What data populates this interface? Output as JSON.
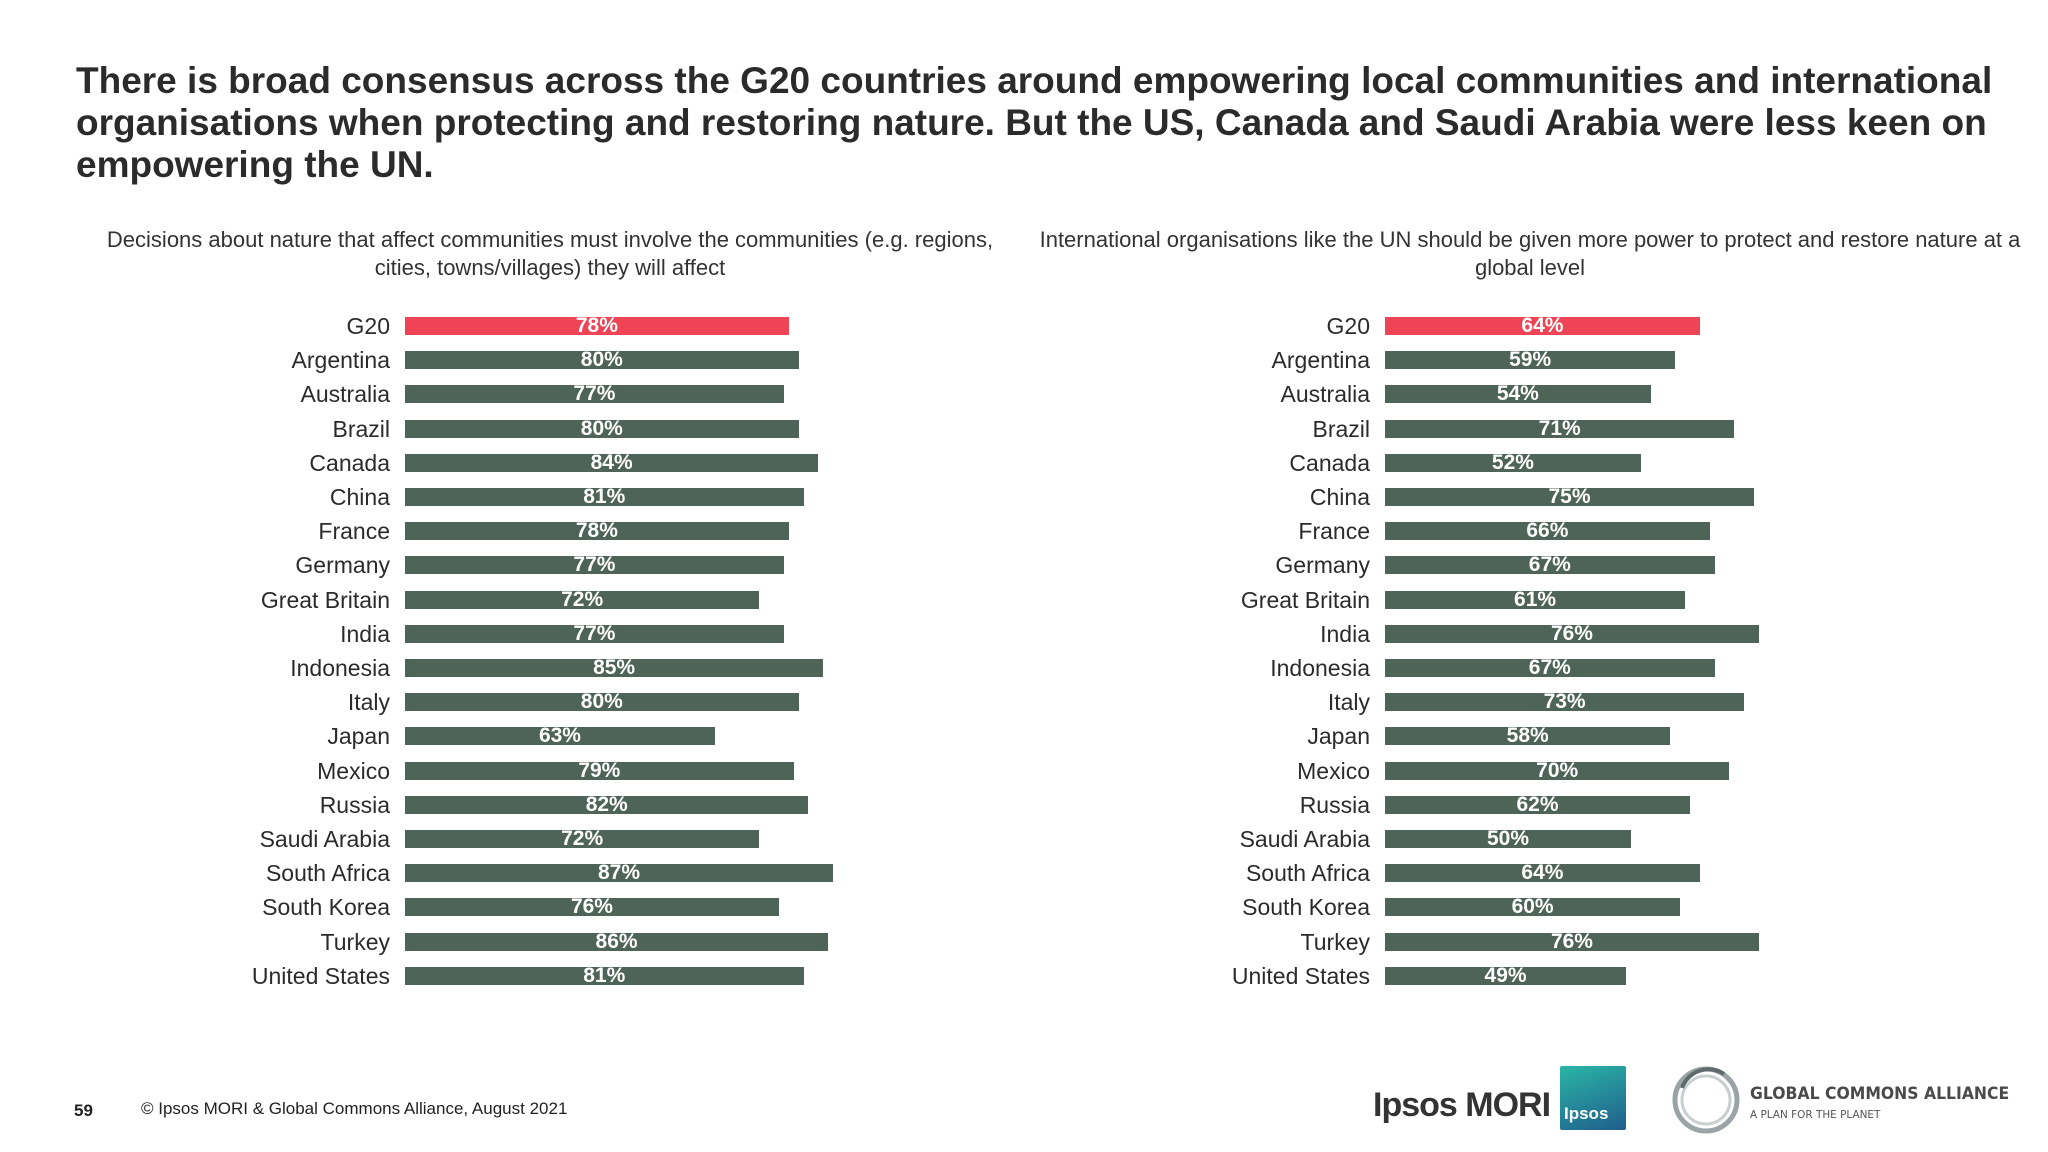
{
  "headline": "There is broad consensus across the G20 countries around empowering local communities and international organisations when protecting and restoring nature. But the US, Canada and Saudi Arabia were less keen on empowering the UN.",
  "colors": {
    "highlight": "#ee4455",
    "bar": "#4f6459",
    "bar_label": "#ffffff"
  },
  "chart_data": [
    {
      "type": "bar",
      "orientation": "horizontal",
      "title": "Decisions about nature that affect communities must involve the communities (e.g. regions, cities, towns/villages) they will affect",
      "categories": [
        "G20",
        "Argentina",
        "Australia",
        "Brazil",
        "Canada",
        "China",
        "France",
        "Germany",
        "Great Britain",
        "India",
        "Indonesia",
        "Italy",
        "Japan",
        "Mexico",
        "Russia",
        "Saudi Arabia",
        "South Africa",
        "South Korea",
        "Turkey",
        "United States"
      ],
      "values": [
        78,
        80,
        77,
        80,
        84,
        81,
        78,
        77,
        72,
        77,
        85,
        80,
        63,
        79,
        82,
        72,
        87,
        76,
        86,
        81
      ],
      "value_labels": [
        "78%",
        "80%",
        "77%",
        "80%",
        "84%",
        "81%",
        "78%",
        "77%",
        "72%",
        "77%",
        "85%",
        "80%",
        "63%",
        "79%",
        "82%",
        "72%",
        "87%",
        "76%",
        "86%",
        "81%"
      ],
      "highlight_category": "G20",
      "unit": "%"
    },
    {
      "type": "bar",
      "orientation": "horizontal",
      "title": "International organisations like the UN should be given more power to protect and restore nature at a global level",
      "categories": [
        "G20",
        "Argentina",
        "Australia",
        "Brazil",
        "Canada",
        "China",
        "France",
        "Germany",
        "Great Britain",
        "India",
        "Indonesia",
        "Italy",
        "Japan",
        "Mexico",
        "Russia",
        "Saudi Arabia",
        "South Africa",
        "South Korea",
        "Turkey",
        "United States"
      ],
      "values": [
        64,
        59,
        54,
        71,
        52,
        75,
        66,
        67,
        61,
        76,
        67,
        73,
        58,
        70,
        62,
        50,
        64,
        60,
        76,
        49
      ],
      "value_labels": [
        "64%",
        "59%",
        "54%",
        "71%",
        "52%",
        "75%",
        "66%",
        "67%",
        "61%",
        "76%",
        "67%",
        "73%",
        "58%",
        "70%",
        "62%",
        "50%",
        "64%",
        "60%",
        "76%",
        "49%"
      ],
      "highlight_category": "G20",
      "unit": "%"
    }
  ],
  "footer": {
    "page_number": "59",
    "copyright": "© Ipsos MORI & Global Commons Alliance, August 2021"
  },
  "logos": {
    "ipsos_mori": "Ipsos MORI",
    "ipsos_box": "Ipsos",
    "gca_title": "GLOBAL COMMONS ALLIANCE",
    "gca_tagline": "A PLAN FOR THE PLANET"
  }
}
